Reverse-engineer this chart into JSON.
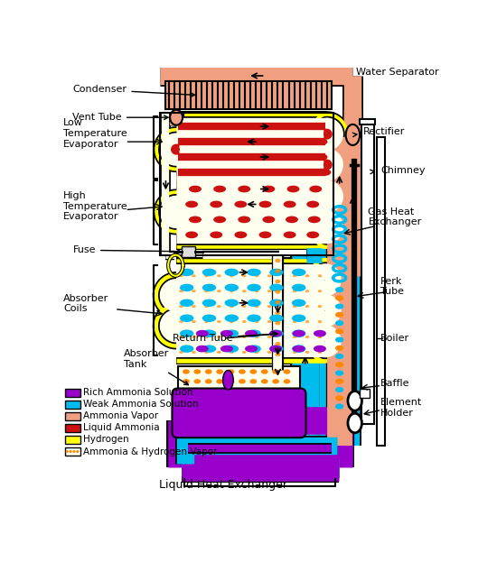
{
  "colors": {
    "rich_ammonia": "#9900CC",
    "weak_ammonia": "#00BBEE",
    "ammonia_vapor": "#F0A080",
    "liquid_ammonia": "#CC1111",
    "hydrogen": "#FFFF00",
    "ammonia_hydrogen": "#FFFFF0",
    "background": "#FFFFFF",
    "condenser_salmon": "#F0A080",
    "outline": "#000000",
    "boiler_cyan": "#00BBEE",
    "gas_exchanger_cyan": "#00BBEE",
    "chimney_white": "#FFFFFF",
    "perk_black": "#111111",
    "orange_dot": "#FF8800",
    "purple_blob": "#9900CC"
  },
  "legend": [
    {
      "label": "Rich Ammonia Solution",
      "color": "#9900CC"
    },
    {
      "label": "Weak Ammonia Solution",
      "color": "#00BBEE"
    },
    {
      "label": "Ammonia Vapor",
      "color": "#F0A080"
    },
    {
      "label": "Liquid Ammonia",
      "color": "#CC1111"
    },
    {
      "label": "Hydrogen",
      "color": "#FFFF00"
    },
    {
      "label": "Ammonia & Hydrogen Vapor",
      "color": "#FFFFF0"
    }
  ],
  "labels": {
    "water_separator": "Water Separator",
    "condenser": "Condenser",
    "vent_tube": "Vent Tube",
    "low_temp_evap": "Low\nTemperature\nEvaporator",
    "high_temp_evap": "High\nTemperature\nEvaporator",
    "fuse": "Fuse",
    "absorber_coils": "Absorber\nCoils",
    "return_tube": "Return Tube",
    "absorber_tank": "Absorber\nTank",
    "rectifier": "Rectifier",
    "chimney": "Chimney",
    "gas_heat_exchanger": "Gas Heat\nExchanger",
    "perk_tube": "Perk\nTube",
    "boiler": "Boiler",
    "baffle": "Baffle",
    "element_holder": "Element\nHolder",
    "liquid_heat_exchanger": "Liquid Heat Exchanger"
  }
}
